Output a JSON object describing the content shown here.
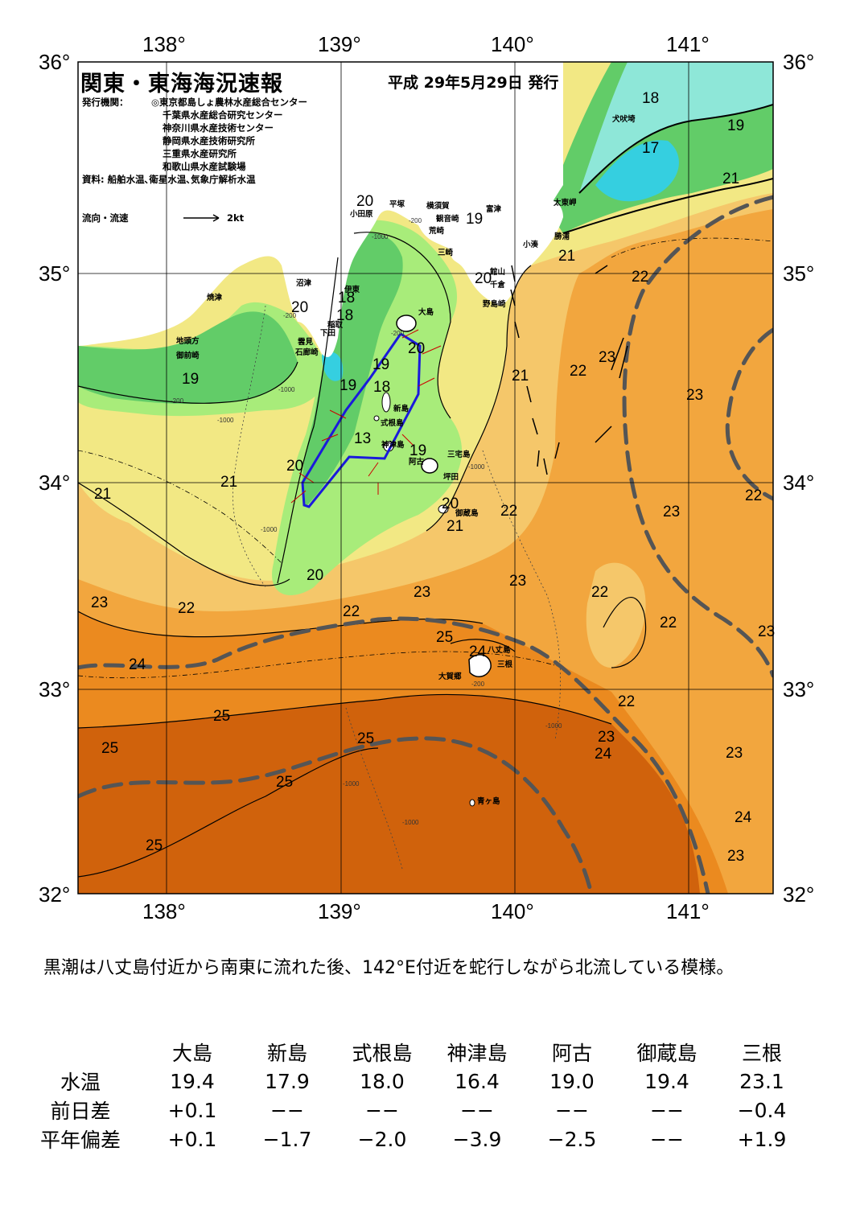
{
  "map": {
    "title": "関東・東海海況速報",
    "date": "平成  29年5月29日  発行",
    "issuer_label": "発行機関：",
    "issuers": [
      "◎東京都島しょ農林水産総合センター",
      "千葉県水産総合研究センター",
      "神奈川県水産技術センター",
      "静岡県水産技術研究所",
      "三重県水産研究所",
      "和歌山県水産試験場"
    ],
    "sources": "資料: 船舶水温､衛星水温､気象庁解析水温",
    "legend_label": "流向・流速",
    "legend_scale": "2kt",
    "lon_ticks": [
      "138°",
      "139°",
      "140°",
      "141°"
    ],
    "lat_ticks": [
      "36°",
      "35°",
      "34°",
      "33°",
      "32°"
    ],
    "isotherm_labels": [
      "18",
      "19",
      "17",
      "21",
      "20",
      "20",
      "19",
      "18",
      "20",
      "21",
      "22",
      "22",
      "23",
      "21",
      "22",
      "23",
      "19",
      "19",
      "18",
      "20",
      "19",
      "20",
      "21",
      "21",
      "22",
      "21",
      "20",
      "20",
      "19",
      "18",
      "13",
      "23",
      "22",
      "23",
      "24",
      "25",
      "25",
      "23",
      "22",
      "22",
      "22",
      "23",
      "22",
      "23",
      "24",
      "25",
      "25",
      "25",
      "25",
      "23",
      "24",
      "23",
      "24",
      "23"
    ],
    "place_names": [
      "犬吠埼",
      "太東岬",
      "勝浦",
      "小湊",
      "館山",
      "千倉",
      "野島崎",
      "富津",
      "観音崎",
      "荒崎",
      "三崎",
      "横須賀",
      "平塚",
      "小田原",
      "伊東",
      "稲取",
      "下田",
      "石廊崎",
      "雲見",
      "沼津",
      "焼津",
      "地頭方",
      "御前崎",
      "大島",
      "新島",
      "式根島",
      "神津島",
      "三宅島",
      "坪田",
      "阿古",
      "御蔵島",
      "八丈島",
      "三根",
      "大賀郷",
      "青ヶ島"
    ],
    "depth_labels": [
      "-200",
      "-1000",
      "-200",
      "-1000",
      "-1000",
      "-200",
      "-200",
      "-1000",
      "-1000",
      "-1000",
      "-200",
      "-1000",
      "-1000"
    ],
    "colors": {
      "t17": "#35cfe0",
      "t18": "#8ee7d8",
      "t19": "#62cc68",
      "t20": "#a8ec7a",
      "t21": "#f2e884",
      "t22": "#f5c76a",
      "t23": "#f2a63e",
      "t24": "#eb8a1f",
      "t25": "#d0620c",
      "t26": "#b84608",
      "land": "#ffffff",
      "kuroshio": "#555555",
      "current": "#1a1adb",
      "drifter": "#cc0000"
    }
  },
  "comment": "黒潮は八丈島付近から南東に流れた後、142°E付近を蛇行しながら北流している模様。",
  "table": {
    "headers": [
      "大島",
      "新島",
      "式根島",
      "神津島",
      "阿古",
      "御蔵島",
      "三根"
    ],
    "rows": [
      {
        "label": "水温",
        "values": [
          "19.4",
          "17.9",
          "18.0",
          "16.4",
          "19.0",
          "19.4",
          "23.1"
        ]
      },
      {
        "label": "前日差",
        "values": [
          "+0.1",
          "−−",
          "−−",
          "−−",
          "−−",
          "−−",
          "−0.4"
        ]
      },
      {
        "label": "平年偏差",
        "values": [
          "+0.1",
          "−1.7",
          "−2.0",
          "−3.9",
          "−2.5",
          "−−",
          "+1.9"
        ]
      }
    ]
  }
}
